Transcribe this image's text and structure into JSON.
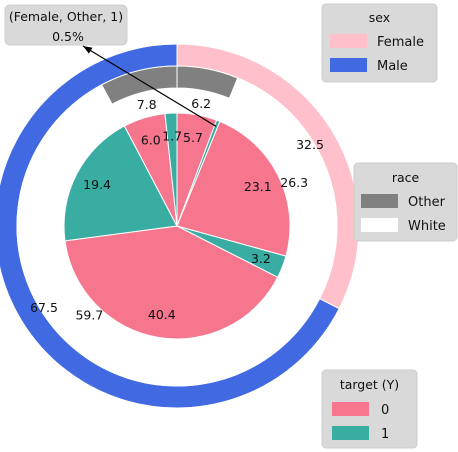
{
  "chart_data": {
    "type": "pie",
    "colors": {
      "female": "#ffc0cb",
      "male": "#4169e1",
      "other": "#808080",
      "white": "#ffffff",
      "target0": "#f6768e",
      "target1": "#3aada2",
      "edge": "#ffffff"
    },
    "outer_ring": {
      "dimension": "sex",
      "slices": [
        {
          "key": "female",
          "name": "Female",
          "value": 32.5,
          "label": "32.5"
        },
        {
          "key": "male",
          "name": "Male",
          "value": 67.5,
          "label": "67.5"
        }
      ]
    },
    "middle_ring": {
      "dimension": "race",
      "slices": [
        {
          "sex": "Female",
          "key": "other",
          "name": "Other",
          "value": 6.2,
          "label": "6.2"
        },
        {
          "sex": "Female",
          "key": "white",
          "name": "White",
          "value": 26.3,
          "label": "26.3"
        },
        {
          "sex": "Male",
          "key": "white",
          "name": "White",
          "value": 59.7,
          "label": "59.7"
        },
        {
          "sex": "Male",
          "key": "other",
          "name": "Other",
          "value": 7.8,
          "label": "7.8"
        }
      ]
    },
    "inner_pie": {
      "dimension": "target (Y)",
      "slices": [
        {
          "sex": "Female",
          "race": "Other",
          "target": "0",
          "key": "target0",
          "value": 5.7,
          "label": "5.7"
        },
        {
          "sex": "Female",
          "race": "Other",
          "target": "1",
          "key": "target1",
          "value": 0.5,
          "label": ""
        },
        {
          "sex": "Female",
          "race": "White",
          "target": "0",
          "key": "target0",
          "value": 23.1,
          "label": "23.1"
        },
        {
          "sex": "Female",
          "race": "White",
          "target": "1",
          "key": "target1",
          "value": 3.2,
          "label": "3.2"
        },
        {
          "sex": "Male",
          "race": "White",
          "target": "0",
          "key": "target0",
          "value": 40.4,
          "label": "40.4"
        },
        {
          "sex": "Male",
          "race": "White",
          "target": "1",
          "key": "target1",
          "value": 19.4,
          "label": "19.4"
        },
        {
          "sex": "Male",
          "race": "Other",
          "target": "0",
          "key": "target0",
          "value": 6.0,
          "label": "6.0"
        },
        {
          "sex": "Male",
          "race": "Other",
          "target": "1",
          "key": "target1",
          "value": 1.7,
          "label": "1.7"
        }
      ]
    },
    "annotation": {
      "line1": "(Female, Other, 1)",
      "line2": "0.5%"
    },
    "legends": [
      {
        "title": "sex",
        "position": "top-right",
        "entries": [
          {
            "label": "Female",
            "key": "female"
          },
          {
            "label": "Male",
            "key": "male"
          }
        ]
      },
      {
        "title": "race",
        "position": "center-right",
        "entries": [
          {
            "label": "Other",
            "key": "other"
          },
          {
            "label": "White",
            "key": "white"
          }
        ]
      },
      {
        "title": "target (Y)",
        "position": "bottom-right",
        "entries": [
          {
            "label": "0",
            "key": "target0"
          },
          {
            "label": "1",
            "key": "target1"
          }
        ]
      }
    ]
  }
}
